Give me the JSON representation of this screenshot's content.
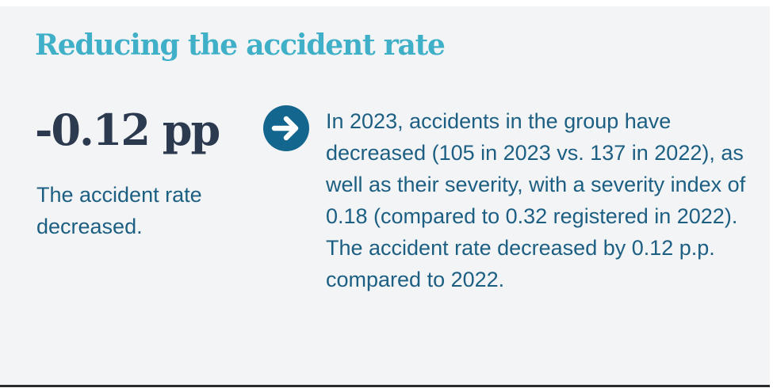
{
  "section": {
    "title": "Reducing the accident rate"
  },
  "stat": {
    "value": "-0.12 pp",
    "caption": "The accident rate decreased."
  },
  "arrow": {
    "icon": "arrow-right-circle-icon",
    "color": "#13668d"
  },
  "description": {
    "text": "In 2023, accidents in the group have decreased (105 in 2023 vs. 137 in 2022), as well as their severity, with a severity index of 0.18 (compared to 0.32 registered in 2022). The accident rate decreased by 0.12 p.p. compared to 2022."
  },
  "colors": {
    "title": "#3fb0c8",
    "stat": "#2c3a4f",
    "text": "#1c5f82",
    "background": "#f3f4f6"
  }
}
